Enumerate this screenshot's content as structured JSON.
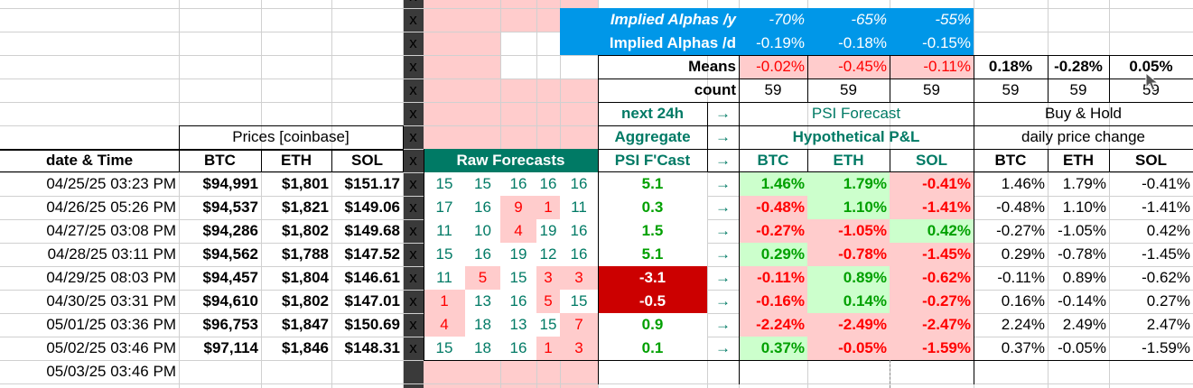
{
  "implied": {
    "label_y": "Implied Alphas /y",
    "label_d": "Implied Alphas /d",
    "y_values": [
      "-70%",
      "-65%",
      "-55%"
    ],
    "d_values": [
      "-0.19%",
      "-0.18%",
      "-0.15%"
    ]
  },
  "means": {
    "label": "Means",
    "values": [
      "-0.02%",
      "-0.45%",
      "-0.11%"
    ],
    "bh_values": [
      "0.18%",
      "-0.28%",
      "0.05%"
    ]
  },
  "count": {
    "label": "count",
    "values": [
      "59",
      "59",
      "59"
    ],
    "bh_values": [
      "59",
      "59",
      "59"
    ]
  },
  "headers": {
    "next24": "next 24h",
    "aggregate": "Aggregate",
    "psi_fcast": "PSI F'Cast",
    "arrow": "→",
    "psi_forecast": "PSI Forecast",
    "hyp_pl": "Hypothetical P&L",
    "buy_hold": "Buy & Hold",
    "daily_change": "daily price change",
    "prices": "Prices [coinbase]",
    "date_time": "date & Time",
    "btc": "BTC",
    "eth": "ETH",
    "sol": "SOL",
    "raw_forecasts": "Raw Forecasts",
    "x": "x"
  },
  "rows": [
    {
      "date": "04/25/25 03:23 PM",
      "btc": "$94,991",
      "eth": "$1,801",
      "sol": "$151.17",
      "raw": [
        "15",
        "15",
        "16",
        "16",
        "16"
      ],
      "agg": "5.1",
      "pl": [
        "1.46%",
        "1.79%",
        "-0.41%"
      ],
      "bh": [
        "1.46%",
        "1.79%",
        "-0.41%"
      ]
    },
    {
      "date": "04/26/25 05:26 PM",
      "btc": "$94,537",
      "eth": "$1,821",
      "sol": "$149.06",
      "raw": [
        "17",
        "16",
        "9",
        "1",
        "11"
      ],
      "agg": "0.3",
      "pl": [
        "-0.48%",
        "1.10%",
        "-1.41%"
      ],
      "bh": [
        "-0.48%",
        "1.10%",
        "-1.41%"
      ]
    },
    {
      "date": "04/27/25 03:08 PM",
      "btc": "$94,286",
      "eth": "$1,802",
      "sol": "$149.68",
      "raw": [
        "11",
        "10",
        "4",
        "19",
        "16"
      ],
      "agg": "1.5",
      "pl": [
        "-0.27%",
        "-1.05%",
        "0.42%"
      ],
      "bh": [
        "-0.27%",
        "-1.05%",
        "0.42%"
      ]
    },
    {
      "date": "04/28/25 03:11 PM",
      "btc": "$94,562",
      "eth": "$1,788",
      "sol": "$147.52",
      "raw": [
        "15",
        "16",
        "19",
        "12",
        "16"
      ],
      "agg": "5.1",
      "pl": [
        "0.29%",
        "-0.78%",
        "-1.45%"
      ],
      "bh": [
        "0.29%",
        "-0.78%",
        "-1.45%"
      ]
    },
    {
      "date": "04/29/25 08:03 PM",
      "btc": "$94,457",
      "eth": "$1,804",
      "sol": "$146.61",
      "raw": [
        "11",
        "5",
        "15",
        "3",
        "3"
      ],
      "agg": "-3.1",
      "pl": [
        "-0.11%",
        "0.89%",
        "-0.62%"
      ],
      "bh": [
        "-0.11%",
        "0.89%",
        "-0.62%"
      ]
    },
    {
      "date": "04/30/25 03:31 PM",
      "btc": "$94,610",
      "eth": "$1,802",
      "sol": "$147.01",
      "raw": [
        "1",
        "13",
        "16",
        "5",
        "15"
      ],
      "agg": "-0.5",
      "pl": [
        "-0.16%",
        "0.14%",
        "-0.27%"
      ],
      "bh": [
        "0.16%",
        "-0.14%",
        "0.27%"
      ]
    },
    {
      "date": "05/01/25 03:36 PM",
      "btc": "$96,753",
      "eth": "$1,847",
      "sol": "$150.69",
      "raw": [
        "4",
        "18",
        "13",
        "15",
        "7"
      ],
      "agg": "0.9",
      "pl": [
        "-2.24%",
        "-2.49%",
        "-2.47%"
      ],
      "bh": [
        "2.24%",
        "2.49%",
        "2.47%"
      ]
    },
    {
      "date": "05/02/25 03:46 PM",
      "btc": "$97,114",
      "eth": "$1,846",
      "sol": "$148.31",
      "raw": [
        "15",
        "18",
        "16",
        "1",
        "3"
      ],
      "agg": "0.1",
      "pl": [
        "0.37%",
        "-0.05%",
        "-1.59%"
      ],
      "bh": [
        "0.37%",
        "-0.05%",
        "-1.59%"
      ]
    },
    {
      "date": "05/03/25 03:46 PM"
    }
  ],
  "colors": {
    "blue": "#0097e8",
    "teal": "#007a65",
    "pink": "#ffcccc",
    "green_fill": "#ccffcc",
    "dark_red": "#cc0000"
  }
}
